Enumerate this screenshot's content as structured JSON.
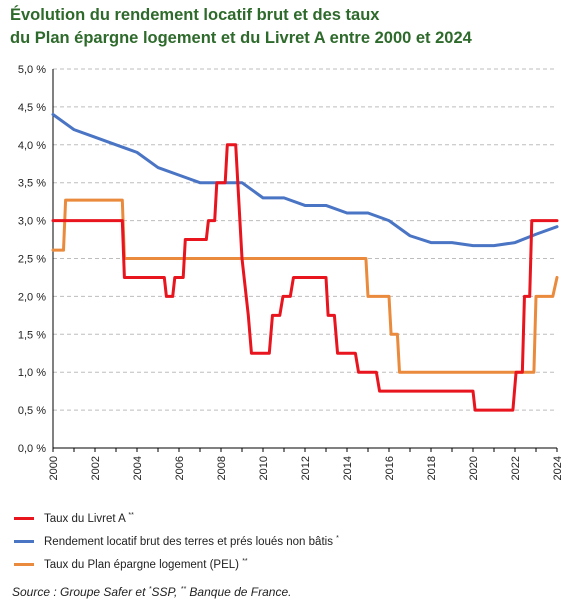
{
  "title_lines": [
    "Évolution du rendement locatif brut et des taux",
    "du Plan épargne logement et du Livret A entre 2000 et 2024"
  ],
  "source": {
    "prefix": "Source : Groupe Safer et ",
    "mark1": "*",
    "part1": "SSP, ",
    "mark2": "**",
    "part2": " Banque de France."
  },
  "colors": {
    "livret_a": "#e8141e",
    "rendement": "#4a74c4",
    "pel": "#ea8a3c",
    "grid": "#bdbdbd",
    "axis": "#000000"
  },
  "chart_data": {
    "type": "line",
    "title": "Évolution du rendement locatif brut et des taux du Plan épargne logement et du Livret A entre 2000 et 2024",
    "xlabel": "",
    "ylabel": "",
    "xlim": [
      2000,
      2024
    ],
    "ylim": [
      0,
      5
    ],
    "x_ticks": [
      2000,
      2002,
      2004,
      2006,
      2008,
      2010,
      2012,
      2014,
      2016,
      2018,
      2020,
      2022,
      2024
    ],
    "y_ticks": [
      "0,0 %",
      "0,5 %",
      "1,0 %",
      "1,5 %",
      "2,0 %",
      "2,5 %",
      "3,0 %",
      "3,5 %",
      "4,0 %",
      "4,5 %",
      "5,0 %"
    ],
    "y_tick_values": [
      0,
      0.5,
      1,
      1.5,
      2,
      2.5,
      3,
      3.5,
      4,
      4.5,
      5
    ],
    "grid": "horizontal dashed",
    "legend_position": "bottom",
    "series": [
      {
        "name": "Taux du Livret A",
        "mark": "**",
        "color_key": "livret_a",
        "points": [
          [
            2000,
            3.0
          ],
          [
            2003.3,
            3.0
          ],
          [
            2003.4,
            2.25
          ],
          [
            2005.3,
            2.25
          ],
          [
            2005.4,
            2.0
          ],
          [
            2005.7,
            2.0
          ],
          [
            2005.8,
            2.25
          ],
          [
            2006.2,
            2.25
          ],
          [
            2006.3,
            2.75
          ],
          [
            2007.3,
            2.75
          ],
          [
            2007.4,
            3.0
          ],
          [
            2007.7,
            3.0
          ],
          [
            2007.8,
            3.5
          ],
          [
            2008.2,
            3.5
          ],
          [
            2008.3,
            4.0
          ],
          [
            2008.7,
            4.0
          ],
          [
            2009.0,
            2.5
          ],
          [
            2009.3,
            1.75
          ],
          [
            2009.45,
            1.25
          ],
          [
            2010.3,
            1.25
          ],
          [
            2010.45,
            1.75
          ],
          [
            2010.8,
            1.75
          ],
          [
            2010.95,
            2.0
          ],
          [
            2011.3,
            2.0
          ],
          [
            2011.45,
            2.25
          ],
          [
            2013.0,
            2.25
          ],
          [
            2013.1,
            1.75
          ],
          [
            2013.4,
            1.75
          ],
          [
            2013.55,
            1.25
          ],
          [
            2014.4,
            1.25
          ],
          [
            2014.55,
            1.0
          ],
          [
            2015.4,
            1.0
          ],
          [
            2015.55,
            0.75
          ],
          [
            2020.0,
            0.75
          ],
          [
            2020.1,
            0.5
          ],
          [
            2021.9,
            0.5
          ],
          [
            2022.05,
            1.0
          ],
          [
            2022.35,
            1.0
          ],
          [
            2022.45,
            2.0
          ],
          [
            2022.7,
            2.0
          ],
          [
            2022.8,
            3.0
          ],
          [
            2024.0,
            3.0
          ]
        ]
      },
      {
        "name": "Rendement locatif brut des terres et prés loués non bâtis",
        "mark": "*",
        "color_key": "rendement",
        "points": [
          [
            2000,
            4.4
          ],
          [
            2001,
            4.2
          ],
          [
            2002,
            4.1
          ],
          [
            2003,
            4.0
          ],
          [
            2004,
            3.9
          ],
          [
            2005,
            3.7
          ],
          [
            2006,
            3.6
          ],
          [
            2007,
            3.5
          ],
          [
            2008,
            3.5
          ],
          [
            2009,
            3.5
          ],
          [
            2010,
            3.3
          ],
          [
            2011,
            3.3
          ],
          [
            2012,
            3.2
          ],
          [
            2013,
            3.2
          ],
          [
            2014,
            3.1
          ],
          [
            2015,
            3.1
          ],
          [
            2016,
            3.0
          ],
          [
            2017,
            2.8
          ],
          [
            2018,
            2.71
          ],
          [
            2019,
            2.71
          ],
          [
            2020,
            2.67
          ],
          [
            2021,
            2.67
          ],
          [
            2022,
            2.71
          ],
          [
            2023,
            2.82
          ],
          [
            2024,
            2.92
          ]
        ]
      },
      {
        "name": "Taux du Plan épargne logement (PEL)",
        "mark": "**",
        "color_key": "pel",
        "points": [
          [
            2000,
            2.61
          ],
          [
            2000.5,
            2.61
          ],
          [
            2000.6,
            3.27
          ],
          [
            2003.3,
            3.27
          ],
          [
            2003.4,
            2.5
          ],
          [
            2014.9,
            2.5
          ],
          [
            2015.0,
            2.0
          ],
          [
            2016.0,
            2.0
          ],
          [
            2016.1,
            1.5
          ],
          [
            2016.4,
            1.5
          ],
          [
            2016.5,
            1.0
          ],
          [
            2022.9,
            1.0
          ],
          [
            2023.0,
            2.0
          ],
          [
            2023.8,
            2.0
          ],
          [
            2024.0,
            2.25
          ]
        ]
      }
    ]
  }
}
